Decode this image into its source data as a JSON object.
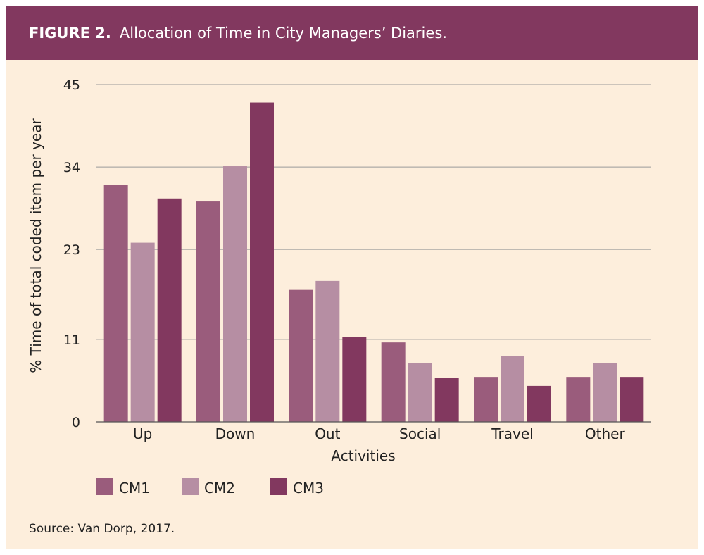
{
  "figure": {
    "label": "FIGURE 2.",
    "title": "Allocation of Time in City Managers’ Diaries.",
    "source": "Source: Van Dorp, 2017."
  },
  "colors": {
    "header_bg": "#82385f",
    "panel_bg": "#fdeedc",
    "CM1": "#9a5c7c",
    "CM2": "#b68ea3",
    "CM3": "#82385f",
    "grid": "#9a9a9a"
  },
  "chart_data": {
    "type": "bar",
    "categories": [
      "Up",
      "Down",
      "Out",
      "Social",
      "Travel",
      "Other"
    ],
    "series": [
      {
        "name": "CM1",
        "values": [
          31.6,
          29.4,
          17.6,
          10.6,
          6.0,
          6.0
        ]
      },
      {
        "name": "CM2",
        "values": [
          23.9,
          34.1,
          18.8,
          7.8,
          8.8,
          7.8
        ]
      },
      {
        "name": "CM3",
        "values": [
          29.8,
          42.6,
          11.3,
          5.9,
          4.8,
          6.0
        ]
      }
    ],
    "xlabel": "Activities",
    "ylabel": "% Time of total coded item per year",
    "ylim": [
      0,
      45
    ],
    "yticks": [
      0,
      11,
      23,
      34,
      45
    ],
    "grid": true,
    "legend_position": "bottom-left"
  }
}
